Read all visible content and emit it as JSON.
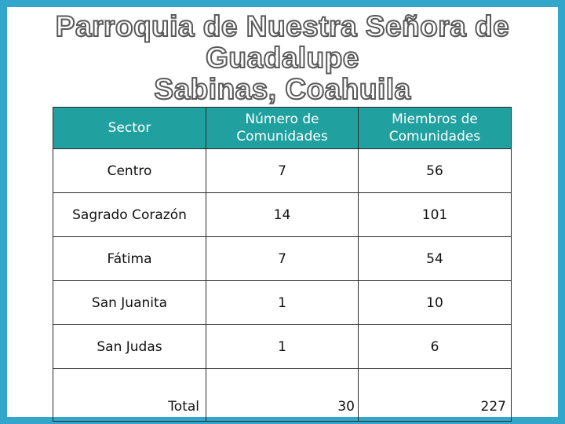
{
  "title": {
    "line1": "Parroquia de Nuestra Señora de",
    "line2": "Guadalupe",
    "line3": "Sabinas, Coahuila"
  },
  "table": {
    "headers": [
      "Sector",
      "Número de Comunidades",
      "Miembros de Comunidades"
    ],
    "rows": [
      {
        "sector": "Centro",
        "comunidades": "7",
        "miembros": "56"
      },
      {
        "sector": "Sagrado Corazón",
        "comunidades": "14",
        "miembros": "101"
      },
      {
        "sector": "Fátima",
        "comunidades": "7",
        "miembros": "54"
      },
      {
        "sector": "San Juanita",
        "comunidades": "1",
        "miembros": "10"
      },
      {
        "sector": "San Judas",
        "comunidades": "1",
        "miembros": "6"
      }
    ],
    "total": {
      "label": "Total",
      "comunidades": "30",
      "miembros": "227"
    }
  },
  "colors": {
    "frame": "#33a6cc",
    "header_bg": "#21a0a0",
    "header_text": "#ffffff"
  }
}
